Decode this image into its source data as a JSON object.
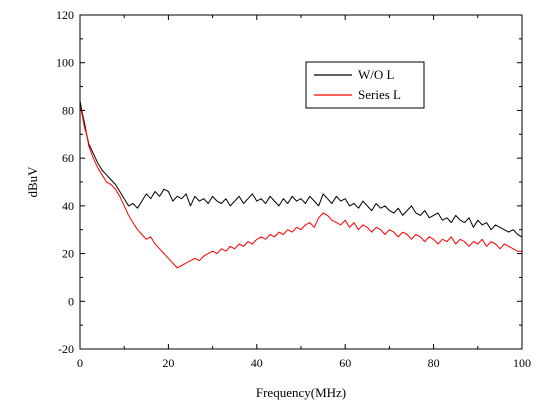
{
  "chart_data": {
    "type": "line",
    "xlabel": "Frequency(MHz)",
    "ylabel": "dBuV",
    "xlim": [
      0,
      100
    ],
    "ylim": [
      -20,
      120
    ],
    "x_ticks": [
      0,
      20,
      40,
      60,
      80,
      100
    ],
    "y_ticks": [
      -20,
      0,
      20,
      40,
      60,
      80,
      100,
      120
    ],
    "grid": false,
    "legend_position": "top-right",
    "series": [
      {
        "name": "W/O L",
        "color": "#000000",
        "x": [
          0,
          0.5,
          1,
          1.5,
          2,
          3,
          4,
          5,
          6,
          7,
          8,
          9,
          10,
          11,
          12,
          13,
          14,
          15,
          16,
          17,
          18,
          19,
          20,
          21,
          22,
          23,
          24,
          25,
          26,
          27,
          28,
          29,
          30,
          31,
          32,
          33,
          34,
          35,
          36,
          37,
          38,
          39,
          40,
          41,
          42,
          43,
          44,
          45,
          46,
          47,
          48,
          49,
          50,
          51,
          52,
          53,
          54,
          55,
          56,
          57,
          58,
          59,
          60,
          61,
          62,
          63,
          64,
          65,
          66,
          67,
          68,
          69,
          70,
          71,
          72,
          73,
          74,
          75,
          76,
          77,
          78,
          79,
          80,
          81,
          82,
          83,
          84,
          85,
          86,
          87,
          88,
          89,
          90,
          91,
          92,
          93,
          94,
          95,
          96,
          97,
          98,
          99,
          100
        ],
        "values": [
          84,
          79,
          75,
          70,
          66,
          62,
          58,
          55,
          53,
          51,
          49,
          46,
          43,
          40,
          41,
          39,
          42,
          45,
          43,
          46,
          44,
          47,
          46,
          42,
          44,
          43,
          45,
          40,
          44,
          42,
          43,
          41,
          44,
          42,
          41,
          43,
          40,
          42,
          44,
          41,
          43,
          45,
          42,
          43,
          41,
          44,
          42,
          40,
          43,
          41,
          44,
          42,
          43,
          41,
          44,
          42,
          40,
          45,
          43,
          41,
          44,
          42,
          43,
          40,
          41,
          39,
          42,
          40,
          38,
          41,
          39,
          40,
          38,
          37,
          39,
          36,
          38,
          40,
          37,
          36,
          38,
          35,
          36,
          37,
          34,
          35,
          33,
          36,
          34,
          33,
          35,
          31,
          34,
          32,
          33,
          30,
          32,
          31,
          30,
          29,
          30,
          28,
          27
        ]
      },
      {
        "name": "Series L",
        "color": "#ff0000",
        "x": [
          0,
          0.5,
          1,
          1.5,
          2,
          3,
          4,
          5,
          6,
          7,
          8,
          9,
          10,
          11,
          12,
          13,
          14,
          15,
          16,
          17,
          18,
          19,
          20,
          21,
          22,
          23,
          24,
          25,
          26,
          27,
          28,
          29,
          30,
          31,
          32,
          33,
          34,
          35,
          36,
          37,
          38,
          39,
          40,
          41,
          42,
          43,
          44,
          45,
          46,
          47,
          48,
          49,
          50,
          51,
          52,
          53,
          54,
          55,
          56,
          57,
          58,
          59,
          60,
          61,
          62,
          63,
          64,
          65,
          66,
          67,
          68,
          69,
          70,
          71,
          72,
          73,
          74,
          75,
          76,
          77,
          78,
          79,
          80,
          81,
          82,
          83,
          84,
          85,
          86,
          87,
          88,
          89,
          90,
          91,
          92,
          93,
          94,
          95,
          96,
          97,
          98,
          99,
          100
        ],
        "values": [
          82,
          78,
          73,
          70,
          65,
          60,
          56,
          53,
          50,
          49,
          47,
          44,
          40,
          36,
          33,
          30,
          28,
          26,
          27,
          24,
          22,
          20,
          18,
          16,
          14,
          15,
          16,
          17,
          18,
          17,
          19,
          20,
          21,
          20,
          22,
          21,
          23,
          22,
          24,
          23,
          25,
          24,
          26,
          27,
          26,
          28,
          27,
          29,
          28,
          30,
          29,
          31,
          30,
          32,
          33,
          31,
          35,
          37,
          36,
          34,
          33,
          32,
          34,
          31,
          33,
          30,
          32,
          31,
          29,
          31,
          30,
          28,
          30,
          29,
          27,
          29,
          28,
          26,
          28,
          27,
          25,
          27,
          26,
          24,
          26,
          25,
          27,
          24,
          26,
          25,
          23,
          25,
          24,
          26,
          23,
          25,
          24,
          22,
          24,
          23,
          22,
          21,
          21
        ]
      }
    ]
  }
}
